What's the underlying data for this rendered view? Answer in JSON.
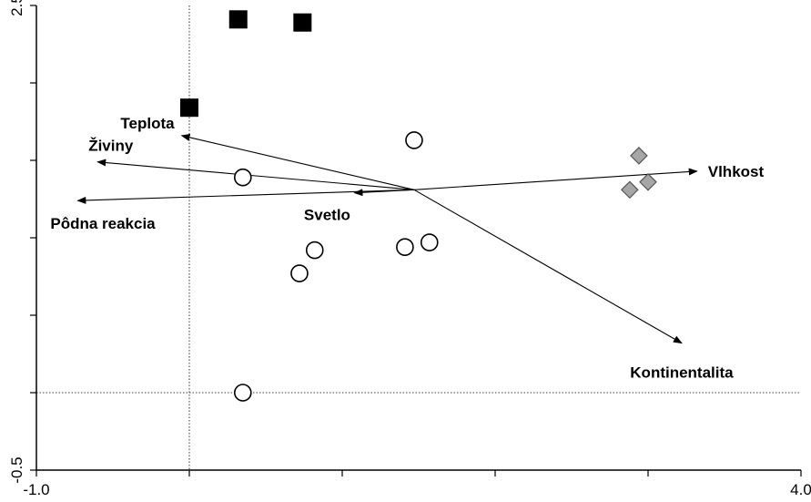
{
  "chart_data": {
    "type": "scatter",
    "title": "",
    "xlabel": "",
    "ylabel": "",
    "xlim": [
      -1.0,
      4.0
    ],
    "ylim": [
      -0.5,
      2.5
    ],
    "x_tick_labels": [
      {
        "value": -1.0,
        "label": "-1.0"
      },
      {
        "value": 4.0,
        "label": "4.0"
      }
    ],
    "y_tick_labels": [
      {
        "value": 2.5,
        "label": "2.5"
      },
      {
        "value": -0.5,
        "label": "-0.5"
      }
    ],
    "x_ticks": [
      -1.0,
      0.0,
      1.0,
      2.0,
      3.0,
      4.0
    ],
    "y_ticks": [
      -0.5,
      0.0,
      0.5,
      1.0,
      1.5,
      2.0,
      2.5
    ],
    "reference_lines": {
      "x": 0.0,
      "y": 0.0
    },
    "series": [
      {
        "marker": "square-filled",
        "color": "#000000",
        "points": [
          [
            0.0,
            1.84
          ],
          [
            0.32,
            2.41
          ],
          [
            0.74,
            2.39
          ]
        ]
      },
      {
        "marker": "circle-open",
        "color": "#000000",
        "points": [
          [
            1.47,
            1.63
          ],
          [
            0.35,
            1.39
          ],
          [
            1.57,
            0.97
          ],
          [
            1.41,
            0.94
          ],
          [
            0.82,
            0.92
          ],
          [
            0.72,
            0.77
          ],
          [
            0.35,
            0.0
          ]
        ]
      },
      {
        "marker": "diamond-filled",
        "color": "#a6a6a6",
        "points": [
          [
            2.94,
            1.53
          ],
          [
            3.0,
            1.36
          ],
          [
            2.88,
            1.31
          ]
        ]
      }
    ],
    "arrows": {
      "origin": [
        1.47,
        1.31
      ],
      "items": [
        {
          "label": "Vlhkost",
          "end": [
            3.32,
            1.43
          ]
        },
        {
          "label": "Kontinentalita",
          "end": [
            3.22,
            0.32
          ]
        },
        {
          "label": "Teplota",
          "end": [
            -0.05,
            1.66
          ]
        },
        {
          "label": "Živiny",
          "end": [
            -0.6,
            1.49
          ]
        },
        {
          "label": "Pôdna reakcia",
          "end": [
            -0.73,
            1.24
          ]
        },
        {
          "label": "Svetlo",
          "end": [
            1.08,
            1.29
          ]
        }
      ]
    }
  }
}
